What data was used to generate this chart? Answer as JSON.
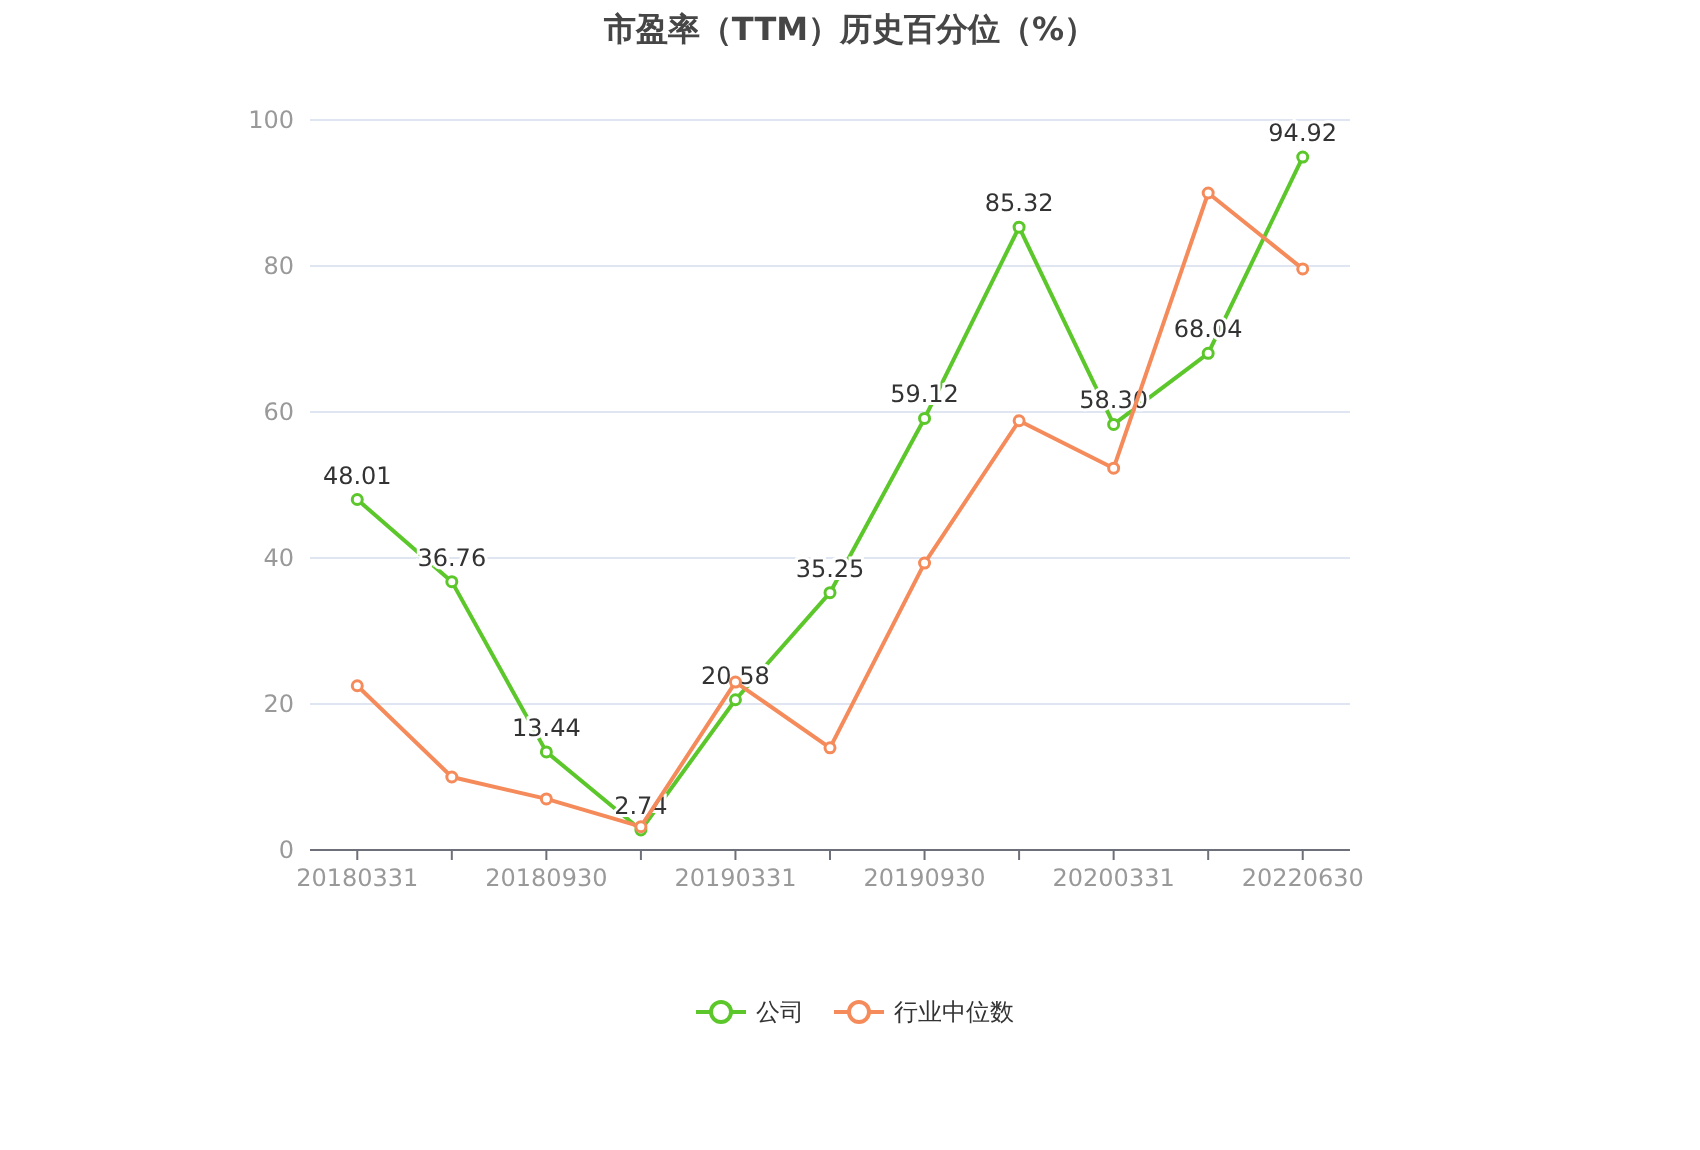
{
  "chart_data": {
    "type": "line",
    "title": "市盈率（TTM）历史百分位（%）",
    "categories": [
      "20180331",
      null,
      "20180930",
      null,
      "20190331",
      null,
      "20190930",
      null,
      "20200331",
      null,
      "20220630"
    ],
    "series": [
      {
        "name": "公司",
        "color": "#5cc72b",
        "values": [
          48.01,
          36.76,
          13.44,
          2.74,
          20.58,
          35.25,
          59.12,
          85.32,
          58.3,
          68.04,
          94.92
        ],
        "value_labels": [
          "48.01",
          "36.76",
          "13.44",
          "2.74",
          "20.58",
          "35.25",
          "59.12",
          "85.32",
          "58.30",
          "68.04",
          "94.92"
        ]
      },
      {
        "name": "行业中位数",
        "color": "#f58b5a",
        "values": [
          22.5,
          10,
          7,
          3.2,
          23,
          14,
          39.3,
          58.8,
          52.3,
          90,
          79.6
        ]
      }
    ],
    "ylim": [
      0,
      100
    ],
    "yticks": [
      0,
      20,
      40,
      60,
      80,
      100
    ],
    "grid": "y",
    "legend": "bottom",
    "marker": "circle"
  }
}
